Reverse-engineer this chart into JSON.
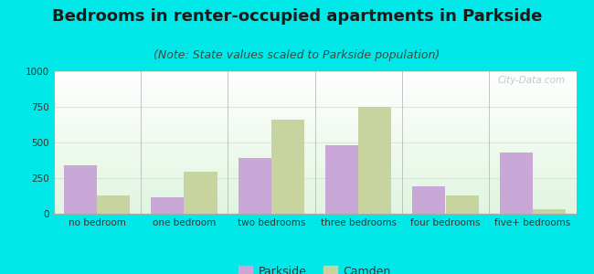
{
  "title": "Bedrooms in renter-occupied apartments in Parkside",
  "subtitle": "(Note: State values scaled to Parkside population)",
  "categories": [
    "no bedroom",
    "one bedroom",
    "two bedrooms",
    "three bedrooms",
    "four bedrooms",
    "five+ bedrooms"
  ],
  "parkside_values": [
    340,
    115,
    390,
    480,
    195,
    430
  ],
  "camden_values": [
    130,
    295,
    660,
    750,
    130,
    30
  ],
  "parkside_color": "#c9a8d8",
  "camden_color": "#c8d4a0",
  "ylim": [
    0,
    1000
  ],
  "yticks": [
    0,
    250,
    500,
    750,
    1000
  ],
  "background_color": "#00e8e8",
  "bar_width": 0.38,
  "title_fontsize": 13,
  "subtitle_fontsize": 9,
  "tick_fontsize": 7.5,
  "legend_fontsize": 9
}
